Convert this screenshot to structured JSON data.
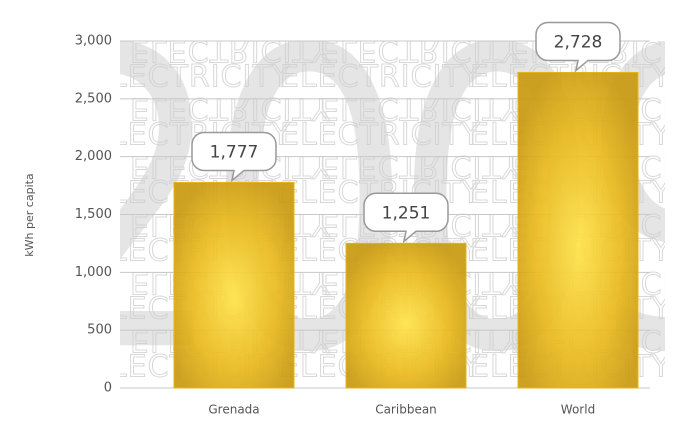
{
  "chart_data": {
    "type": "bar",
    "ylabel": "kWh per capita",
    "background_text": "ELECTRICITY",
    "background_year": "2009",
    "categories": [
      "Grenada",
      "Caribbean",
      "World"
    ],
    "values": [
      1777,
      1251,
      2728
    ],
    "value_labels": [
      "1,777",
      "1,251",
      "2,728"
    ],
    "color": "#e6b417",
    "ylim": [
      0,
      3000
    ],
    "yticks": [
      0,
      500,
      {
        "value": 1000,
        "label": "1,000"
      },
      {
        "value": 1500,
        "label": "1,500"
      },
      {
        "value": 2000,
        "label": "2,000"
      },
      {
        "value": 2500,
        "label": "2,500"
      },
      {
        "value": 3000,
        "label": "3,000"
      }
    ],
    "grid": true
  }
}
